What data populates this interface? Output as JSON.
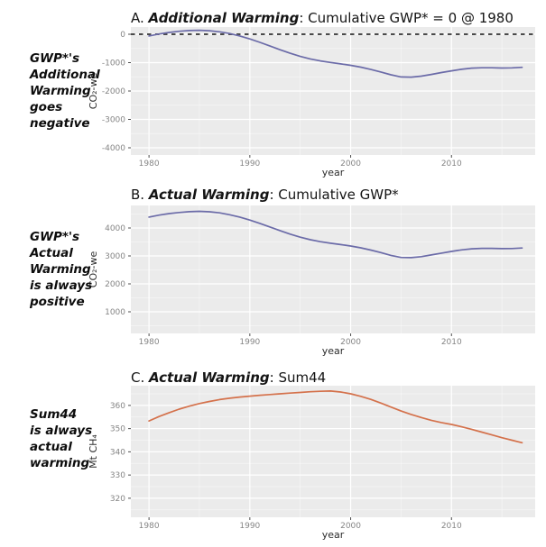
{
  "page": {
    "background": "#ffffff"
  },
  "chart_data": [
    {
      "type": "line",
      "panel_label": "A",
      "title_prefix": "A. ",
      "title_emphasis": "Additional Warming",
      "title_suffix": ": Cumulative GWP* = 0 @ 1980",
      "side_note": "GWP*'s\nAdditional\nWarming\ngoes\nnegative",
      "xlabel": "year",
      "ylabel": "CO₂-we",
      "line_color": "#6b6ba8",
      "panel_bg": "#ebebeb",
      "grid_color": "#ffffff",
      "ref_y": 0,
      "ref_color": "#4a4a4a",
      "legend": "none",
      "x": [
        1980,
        1981,
        1982,
        1983,
        1984,
        1985,
        1986,
        1987,
        1988,
        1989,
        1990,
        1991,
        1992,
        1993,
        1994,
        1995,
        1996,
        1997,
        1998,
        1999,
        2000,
        2001,
        2002,
        2003,
        2004,
        2005,
        2006,
        2007,
        2008,
        2009,
        2010,
        2011,
        2012,
        2013,
        2014,
        2015,
        2016,
        2017
      ],
      "y": [
        -60,
        10,
        65,
        105,
        130,
        140,
        125,
        85,
        25,
        -60,
        -165,
        -285,
        -415,
        -545,
        -670,
        -780,
        -870,
        -940,
        -995,
        -1045,
        -1095,
        -1160,
        -1240,
        -1330,
        -1430,
        -1505,
        -1510,
        -1475,
        -1415,
        -1350,
        -1290,
        -1235,
        -1195,
        -1180,
        -1180,
        -1190,
        -1185,
        -1165
      ],
      "xlim": [
        1978.2,
        2018.3
      ],
      "ylim": [
        -4254,
        254
      ],
      "xticks": [
        1980,
        1990,
        2000,
        2010
      ],
      "yticks": [
        0,
        -1000,
        -2000,
        -3000,
        -4000
      ],
      "x_minor": [
        1985,
        1995,
        2005,
        2015
      ],
      "y_minor": [
        -500,
        -1500,
        -2500,
        -3500
      ]
    },
    {
      "type": "line",
      "panel_label": "B",
      "title_prefix": "B. ",
      "title_emphasis": "Actual Warming",
      "title_suffix": ": Cumulative GWP*",
      "side_note": "GWP*'s\nActual\nWarming\nis always\npositive",
      "xlabel": "year",
      "ylabel": "CO₂-we",
      "line_color": "#6b6ba8",
      "panel_bg": "#ebebeb",
      "grid_color": "#ffffff",
      "ref_y": null,
      "ref_color": null,
      "legend": "none",
      "x": [
        1980,
        1981,
        1982,
        1983,
        1984,
        1985,
        1986,
        1987,
        1988,
        1989,
        1990,
        1991,
        1992,
        1993,
        1994,
        1995,
        1996,
        1997,
        1998,
        1999,
        2000,
        2001,
        2002,
        2003,
        2004,
        2005,
        2006,
        2007,
        2008,
        2009,
        2010,
        2011,
        2012,
        2013,
        2014,
        2015,
        2016,
        2017
      ],
      "y": [
        4390,
        4460,
        4515,
        4555,
        4585,
        4595,
        4580,
        4540,
        4475,
        4390,
        4285,
        4165,
        4035,
        3905,
        3780,
        3670,
        3580,
        3510,
        3455,
        3405,
        3355,
        3290,
        3210,
        3120,
        3020,
        2945,
        2940,
        2975,
        3035,
        3100,
        3160,
        3215,
        3255,
        3270,
        3270,
        3260,
        3265,
        3285
      ],
      "xlim": [
        1978.2,
        2018.3
      ],
      "ylim": [
        226,
        4806
      ],
      "xticks": [
        1980,
        1990,
        2000,
        2010
      ],
      "yticks": [
        4000,
        3000,
        2000,
        1000
      ],
      "x_minor": [
        1985,
        1995,
        2005,
        2015
      ],
      "y_minor": [
        4500,
        3500,
        2500,
        1500,
        500
      ]
    },
    {
      "type": "line",
      "panel_label": "C",
      "title_prefix": "C. ",
      "title_emphasis": "Actual Warming",
      "title_suffix": ": Sum44",
      "side_note": "Sum44\nis always\nactual\nwarming",
      "xlabel": "year",
      "ylabel": "Mt CH₄",
      "line_color": "#d4714b",
      "panel_bg": "#ebebeb",
      "grid_color": "#ffffff",
      "ref_y": null,
      "ref_color": null,
      "legend": "none",
      "x": [
        1980,
        1981,
        1982,
        1983,
        1984,
        1985,
        1986,
        1987,
        1988,
        1989,
        1990,
        1991,
        1992,
        1993,
        1994,
        1995,
        1996,
        1997,
        1998,
        1999,
        2000,
        2001,
        2002,
        2003,
        2004,
        2005,
        2006,
        2007,
        2008,
        2009,
        2010,
        2011,
        2012,
        2013,
        2014,
        2015,
        2016,
        2017
      ],
      "y": [
        353.3,
        355.2,
        356.9,
        358.4,
        359.7,
        360.8,
        361.7,
        362.5,
        363.1,
        363.6,
        364.0,
        364.4,
        364.7,
        365.0,
        365.3,
        365.6,
        365.9,
        366.1,
        366.2,
        365.8,
        365.0,
        363.9,
        362.6,
        361.0,
        359.3,
        357.6,
        356.1,
        354.8,
        353.6,
        352.6,
        351.8,
        350.8,
        349.7,
        348.5,
        347.3,
        346.1,
        345.0,
        343.9
      ],
      "xlim": [
        1978.2,
        2018.3
      ],
      "ylim": [
        311.8,
        368.5
      ],
      "xticks": [
        1980,
        1990,
        2000,
        2010
      ],
      "yticks": [
        360,
        350,
        340,
        330,
        320
      ],
      "x_minor": [
        1985,
        1995,
        2005,
        2015
      ],
      "y_minor": [
        365,
        355,
        345,
        335,
        325,
        315
      ]
    }
  ]
}
